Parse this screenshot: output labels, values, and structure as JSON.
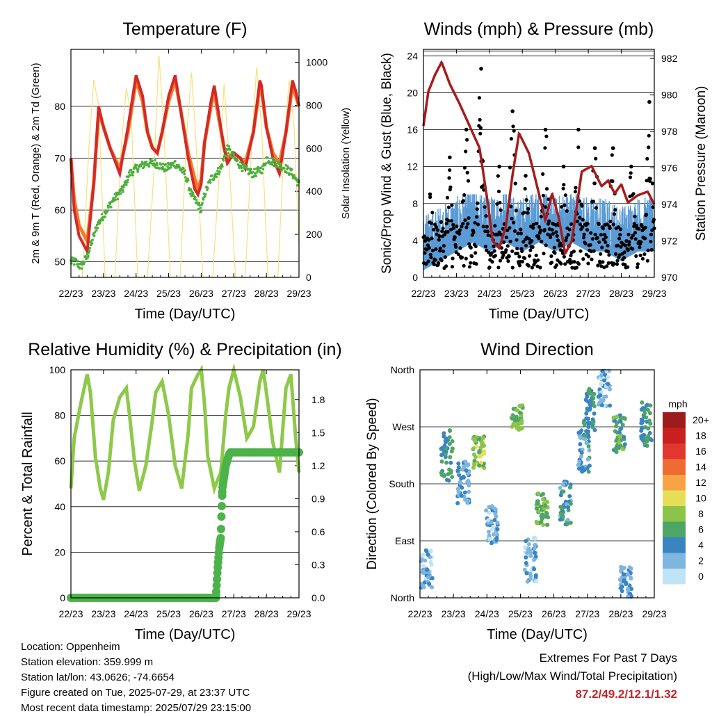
{
  "colors": {
    "t2m": "#d42a27",
    "t9m": "#f47a2a",
    "td": "#4daf3c",
    "solar": "#f7e07a",
    "gust": "#000000",
    "wind": "#5b9bd5",
    "pressure": "#a51c1c",
    "rh": "#8ec94a",
    "precip": "#4cb34a",
    "extremes": "#c0282c"
  },
  "chart_data": [
    {
      "id": "temperature",
      "type": "line",
      "title": "Temperature (F)",
      "xlabel": "Time (Day/UTC)",
      "ylabel": "2m & 9m T (Red, Orange) & 2m Td (Green)",
      "y2label": "Solar Insolation (Yellow)",
      "x_ticks": [
        "22/23",
        "23/23",
        "24/23",
        "25/23",
        "26/23",
        "27/23",
        "28/23",
        "29/23"
      ],
      "ylim": [
        47,
        91
      ],
      "y_ticks": [
        50,
        60,
        70,
        80
      ],
      "y2lim": [
        0,
        1060
      ],
      "y2_ticks": [
        0,
        200,
        400,
        600,
        800,
        1000
      ],
      "grid": "horizontal",
      "series": [
        {
          "key": "t2m",
          "x": [
            0,
            0.1,
            0.25,
            0.5,
            0.7,
            0.85,
            1.0,
            1.2,
            1.5,
            1.75,
            2.0,
            2.2,
            2.35,
            2.5,
            2.65,
            2.8,
            3.0,
            3.2,
            3.35,
            3.6,
            3.8,
            3.9,
            4.0,
            4.1,
            4.3,
            4.4,
            4.5,
            4.7,
            4.8,
            5.0,
            5.2,
            5.35,
            5.6,
            5.8,
            5.85,
            6.0,
            6.2,
            6.4,
            6.6,
            6.8,
            6.9,
            7.0
          ],
          "values": [
            70,
            60,
            55,
            52,
            65,
            80,
            76,
            72,
            67,
            76,
            86,
            82,
            75,
            72,
            71,
            75,
            82,
            86,
            80,
            70,
            64,
            63,
            65,
            73,
            81,
            84,
            80,
            72,
            69,
            71,
            70,
            68,
            75,
            85,
            84,
            76,
            70,
            67,
            75,
            85,
            83,
            80
          ]
        },
        {
          "key": "t9m",
          "x": [
            0,
            0.1,
            0.25,
            0.5,
            0.7,
            0.85,
            1.0,
            1.2,
            1.5,
            1.75,
            2.0,
            2.2,
            2.35,
            2.5,
            2.65,
            2.8,
            3.0,
            3.2,
            3.35,
            3.6,
            3.8,
            3.9,
            4.0,
            4.1,
            4.3,
            4.4,
            4.5,
            4.7,
            4.8,
            5.0,
            5.2,
            5.35,
            5.6,
            5.8,
            5.85,
            6.0,
            6.2,
            6.4,
            6.6,
            6.8,
            6.9,
            7.0
          ],
          "values": [
            70,
            62,
            57,
            54,
            65,
            79,
            76,
            72,
            68,
            75,
            85,
            81,
            75,
            72,
            71,
            75,
            81,
            85,
            80,
            71,
            66,
            64,
            66,
            73,
            80,
            83,
            79,
            72,
            70,
            71,
            70,
            69,
            75,
            84,
            83,
            76,
            71,
            69,
            75,
            84,
            82,
            80
          ]
        },
        {
          "key": "td",
          "x": [
            0,
            0.15,
            0.3,
            0.5,
            0.8,
            1.0,
            1.3,
            1.6,
            1.8,
            2.0,
            2.3,
            2.6,
            2.9,
            3.2,
            3.5,
            3.7,
            3.9,
            4.0,
            4.1,
            4.3,
            4.6,
            4.8,
            5.0,
            5.3,
            5.6,
            5.9,
            6.0,
            6.3,
            6.6,
            6.8,
            7.0
          ],
          "values": [
            50,
            50,
            49,
            51,
            57,
            59,
            62,
            64,
            67,
            68,
            69,
            69,
            68,
            69,
            67,
            63,
            61,
            60,
            63,
            66,
            68,
            72,
            70,
            68,
            67,
            68,
            70,
            69,
            68,
            67,
            65
          ]
        },
        {
          "key": "solar",
          "x": [
            0.35,
            0.55,
            0.7,
            0.85,
            1.05,
            1.35,
            1.55,
            1.7,
            1.85,
            2.05,
            2.35,
            2.55,
            2.7,
            2.85,
            3.05,
            3.35,
            3.55,
            3.7,
            3.85,
            4.05,
            4.35,
            4.55,
            4.7,
            4.85,
            5.05,
            5.35,
            5.55,
            5.7,
            5.85,
            6.05,
            6.35,
            6.55,
            6.7,
            6.85,
            7.0
          ],
          "values": [
            0,
            600,
            920,
            800,
            0,
            0,
            620,
            880,
            760,
            0,
            0,
            500,
            1040,
            700,
            0,
            0,
            650,
            960,
            600,
            0,
            0,
            480,
            900,
            560,
            0,
            0,
            620,
            980,
            700,
            0,
            0,
            640,
            920,
            700,
            150
          ]
        }
      ]
    },
    {
      "id": "winds",
      "type": "scatter",
      "title": "Winds (mph) & Pressure (mb)",
      "xlabel": "Time (Day/UTC)",
      "ylabel": "Sonic/Prop Wind & Gust (Blue, Black)",
      "y2label": "Station Pressure (Maroon)",
      "x_ticks": [
        "22/23",
        "23/23",
        "24/23",
        "25/23",
        "26/23",
        "27/23",
        "28/23",
        "29/23"
      ],
      "ylim": [
        0,
        24.7
      ],
      "y_ticks": [
        0,
        4,
        8,
        12,
        16,
        20,
        24
      ],
      "y2lim": [
        970,
        982.5
      ],
      "y2_ticks": [
        970,
        972,
        974,
        976,
        978,
        980,
        982
      ],
      "grid": "horizontal",
      "gust_peaks": [
        [
          0.2,
          9
        ],
        [
          0.8,
          13
        ],
        [
          1.3,
          16
        ],
        [
          1.75,
          22.6
        ],
        [
          2.3,
          12
        ],
        [
          2.7,
          18
        ],
        [
          3.1,
          11
        ],
        [
          3.7,
          16
        ],
        [
          4.25,
          12
        ],
        [
          4.7,
          16
        ],
        [
          5.2,
          14
        ],
        [
          5.75,
          14
        ],
        [
          6.3,
          12
        ],
        [
          6.85,
          19
        ]
      ],
      "wind_mean": [
        [
          0.0,
          3
        ],
        [
          0.5,
          4
        ],
        [
          1.0,
          5
        ],
        [
          1.5,
          6
        ],
        [
          2.0,
          5
        ],
        [
          2.5,
          6
        ],
        [
          3.0,
          5
        ],
        [
          3.5,
          6
        ],
        [
          4.0,
          5
        ],
        [
          4.5,
          6
        ],
        [
          5.0,
          5
        ],
        [
          5.5,
          5
        ],
        [
          6.0,
          4
        ],
        [
          6.5,
          5
        ],
        [
          7.0,
          5
        ]
      ],
      "pressure": {
        "x": [
          0,
          0.15,
          0.35,
          0.55,
          0.8,
          1.1,
          1.4,
          1.7,
          1.95,
          2.1,
          2.3,
          2.5,
          2.7,
          2.9,
          3.2,
          3.5,
          3.7,
          3.9,
          4.1,
          4.3,
          4.5,
          4.8,
          5.1,
          5.4,
          5.6,
          5.8,
          6.0,
          6.2,
          6.5,
          6.8,
          7.0
        ],
        "values": [
          978.3,
          980.2,
          981.1,
          981.8,
          980.6,
          979.5,
          978.3,
          977.1,
          974.1,
          972.0,
          971.6,
          972.8,
          975.6,
          977.9,
          976.8,
          974.6,
          973.1,
          974.6,
          973.3,
          971.3,
          972.0,
          975.8,
          976.1,
          975.0,
          975.3,
          974.6,
          975.1,
          974.1,
          974.5,
          974.7,
          974.0
        ]
      }
    },
    {
      "id": "humidity",
      "type": "line",
      "title": "Relative Humidity (%) & Precipitation (in)",
      "xlabel": "Time (Day/UTC)",
      "ylabel": "Percent & Total Rainfall",
      "x_ticks": [
        "22/23",
        "23/23",
        "24/23",
        "25/23",
        "26/23",
        "27/23",
        "28/23",
        "29/23"
      ],
      "ylim": [
        0,
        100
      ],
      "y_ticks": [
        0,
        20,
        40,
        60,
        80,
        100
      ],
      "y2lim": [
        0,
        2.07
      ],
      "y2_ticks": [
        "0.0",
        "0.3",
        "0.6",
        "0.9",
        "1.2",
        "1.5",
        "1.8"
      ],
      "grid": "horizontal",
      "series": [
        {
          "key": "rh",
          "x": [
            0,
            0.1,
            0.3,
            0.5,
            0.6,
            0.75,
            0.9,
            1.0,
            1.15,
            1.3,
            1.5,
            1.7,
            1.8,
            1.95,
            2.1,
            2.3,
            2.5,
            2.6,
            2.8,
            3.0,
            3.2,
            3.4,
            3.6,
            3.7,
            3.9,
            4.0,
            4.1,
            4.2,
            4.4,
            4.6,
            4.75,
            4.85,
            5.0,
            5.2,
            5.4,
            5.6,
            5.8,
            5.9,
            6.0,
            6.2,
            6.4,
            6.6,
            6.75,
            6.9,
            7.0
          ],
          "values": [
            48,
            70,
            85,
            98,
            90,
            62,
            48,
            43,
            55,
            78,
            88,
            92,
            80,
            60,
            47,
            58,
            78,
            90,
            95,
            80,
            58,
            48,
            72,
            92,
            98,
            100,
            85,
            62,
            48,
            55,
            80,
            92,
            100,
            88,
            70,
            75,
            95,
            100,
            90,
            68,
            55,
            92,
            98,
            70,
            55
          ]
        },
        {
          "key": "precip",
          "x": [
            0,
            4.45,
            4.5,
            4.55,
            4.6,
            4.62,
            4.65,
            4.7,
            4.75,
            4.8,
            4.85,
            4.9,
            7.0
          ],
          "values": [
            0.0,
            0.0,
            0.25,
            0.45,
            0.55,
            0.75,
            1.0,
            1.1,
            1.2,
            1.25,
            1.3,
            1.32,
            1.32
          ]
        }
      ]
    },
    {
      "id": "direction",
      "type": "scatter",
      "title": "Wind Direction",
      "xlabel": "Time (Day/UTC)",
      "ylabel": "Direction (Colored By Speed)",
      "x_ticks": [
        "22/23",
        "23/23",
        "24/23",
        "25/23",
        "26/23",
        "27/23",
        "28/23",
        "29/23"
      ],
      "y_ticks": [
        "North",
        "East",
        "South",
        "West",
        "North"
      ],
      "ylim": [
        0,
        360
      ],
      "grid": "horizontal",
      "clusters": [
        {
          "x": 0.2,
          "dir": 45,
          "spread": 30,
          "speed": 2
        },
        {
          "x": 0.8,
          "dir": 225,
          "spread": 40,
          "speed": 5
        },
        {
          "x": 1.3,
          "dir": 180,
          "spread": 35,
          "speed": 3
        },
        {
          "x": 1.75,
          "dir": 230,
          "spread": 25,
          "speed": 8
        },
        {
          "x": 2.15,
          "dir": 115,
          "spread": 30,
          "speed": 2
        },
        {
          "x": 2.9,
          "dir": 285,
          "spread": 20,
          "speed": 7
        },
        {
          "x": 3.3,
          "dir": 60,
          "spread": 35,
          "speed": 2
        },
        {
          "x": 3.65,
          "dir": 140,
          "spread": 25,
          "speed": 7
        },
        {
          "x": 4.35,
          "dir": 150,
          "spread": 35,
          "speed": 4
        },
        {
          "x": 4.9,
          "dir": 230,
          "spread": 35,
          "speed": 4
        },
        {
          "x": 5.05,
          "dir": 290,
          "spread": 40,
          "speed": 5
        },
        {
          "x": 5.5,
          "dir": 330,
          "spread": 30,
          "speed": 2
        },
        {
          "x": 5.95,
          "dir": 260,
          "spread": 30,
          "speed": 6
        },
        {
          "x": 6.15,
          "dir": 25,
          "spread": 25,
          "speed": 3
        },
        {
          "x": 6.75,
          "dir": 275,
          "spread": 35,
          "speed": 5
        }
      ],
      "colorbar": {
        "label": "mph",
        "labels": [
          "20+",
          "18",
          "16",
          "14",
          "12",
          "10",
          "8",
          "6",
          "4",
          "2",
          "0"
        ],
        "colors": [
          "#9e1b1b",
          "#c8201f",
          "#e2372d",
          "#f06b32",
          "#f9a443",
          "#e7de58",
          "#8cc44a",
          "#4ea566",
          "#3a84c0",
          "#7fb6e0",
          "#bfe3f7"
        ]
      }
    }
  ],
  "footer": {
    "location": "Location: Oppenheim",
    "elevation": "Station elevation: 359.999 m",
    "latlon": "Station lat/lon: 43.0626; -74.6654",
    "created": "Figure created on Tue, 2025-07-29, at 23:37 UTC",
    "timestamp": "Most recent data timestamp: 2025/07/29 23:15:00"
  },
  "extremes": {
    "title": "Extremes For Past 7 Days",
    "subtitle": "(High/Low/Max Wind/Total Precipitation)",
    "values": "87.2/49.2/12.1/1.32"
  }
}
